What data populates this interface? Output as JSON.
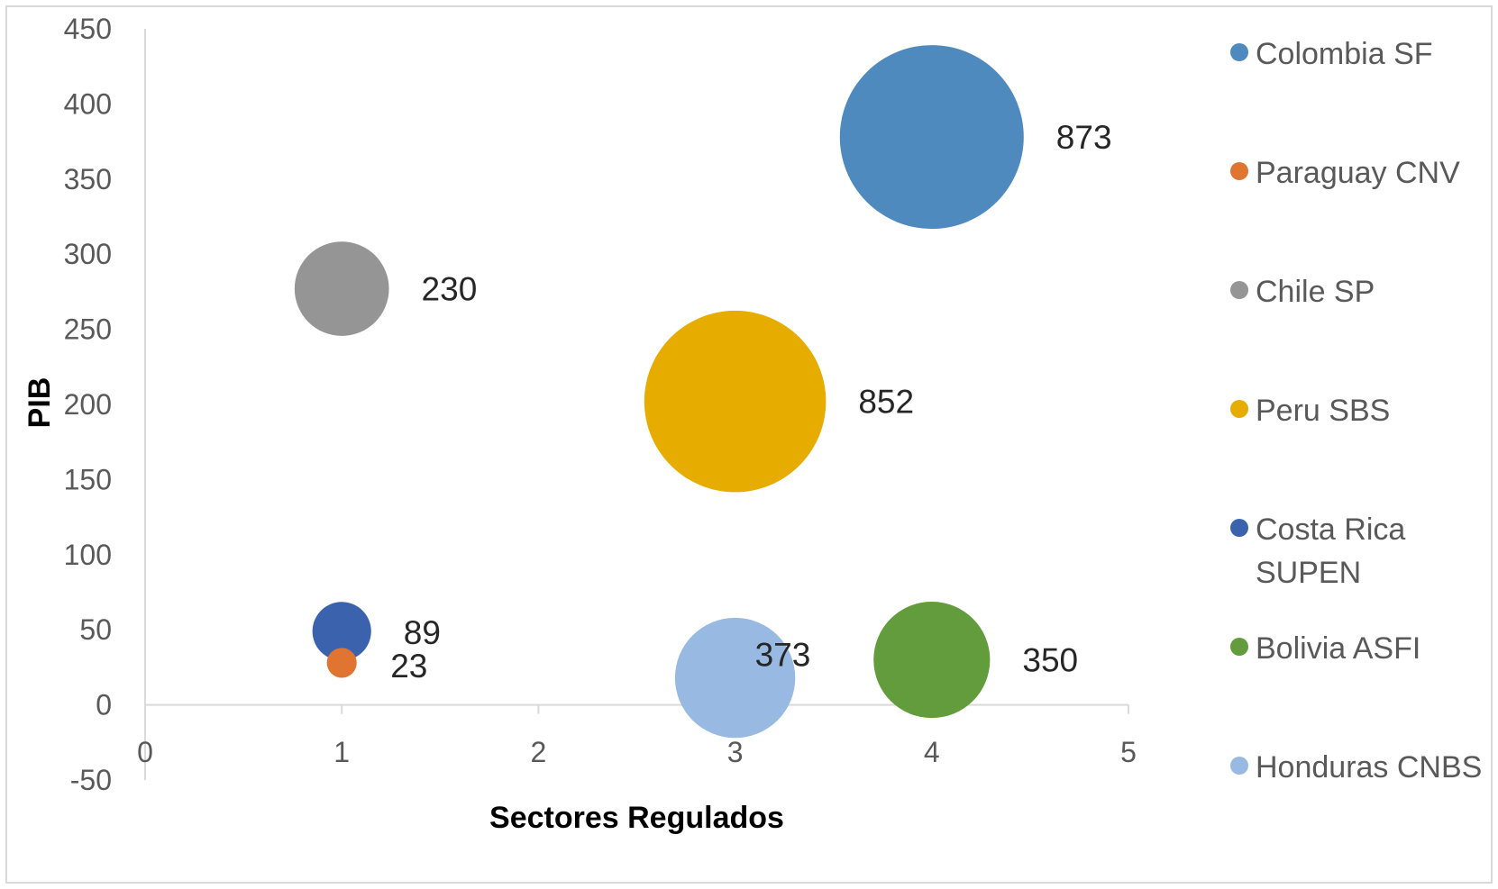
{
  "chart_data": {
    "type": "bubble",
    "title": "",
    "xlabel": "Sectores Regulados",
    "ylabel": "PIB",
    "xlim": [
      0,
      5
    ],
    "ylim": [
      -50,
      450
    ],
    "xticks": [
      0,
      1,
      2,
      3,
      4,
      5
    ],
    "yticks": [
      -50,
      0,
      50,
      100,
      150,
      200,
      250,
      300,
      350,
      400,
      450
    ],
    "grid": false,
    "legend_position": "right",
    "series": [
      {
        "name": "Colombia SF",
        "x": 4,
        "y": 378,
        "size": 873,
        "label": "873",
        "color": "#4f8abe"
      },
      {
        "name": "Paraguay CNV",
        "x": 1,
        "y": 28,
        "size": 23,
        "label": "23",
        "color": "#e07532"
      },
      {
        "name": "Chile SP",
        "x": 1,
        "y": 277,
        "size": 230,
        "label": "230",
        "color": "#959595"
      },
      {
        "name": "Peru SBS",
        "x": 3,
        "y": 202,
        "size": 852,
        "label": "852",
        "color": "#e6ac00"
      },
      {
        "name": "Costa Rica SUPEN",
        "x": 1,
        "y": 49,
        "size": 89,
        "label": "89",
        "color": "#3b63ad"
      },
      {
        "name": "Bolivia ASFI",
        "x": 4,
        "y": 30,
        "size": 350,
        "label": "350",
        "color": "#639c3c"
      },
      {
        "name": "Honduras CNBS",
        "x": 3,
        "y": 18,
        "size": 373,
        "label": "373",
        "color": "#98b9e1"
      }
    ]
  }
}
